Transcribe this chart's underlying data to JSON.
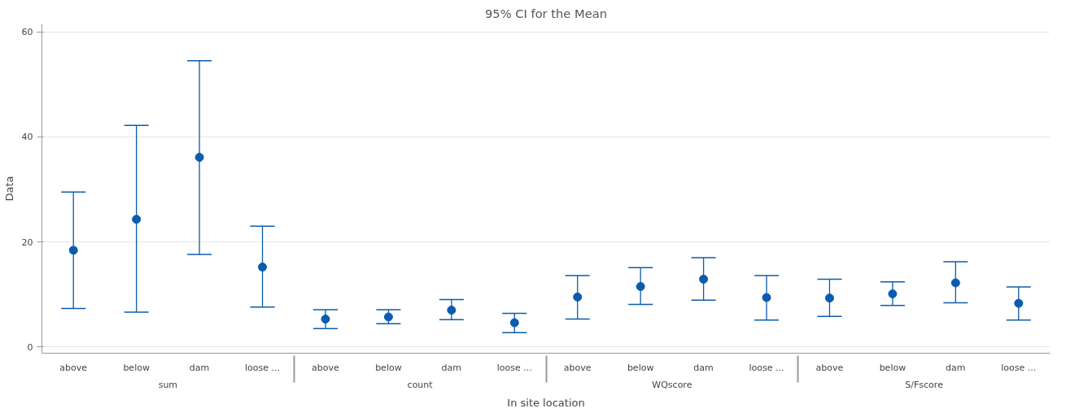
{
  "chart_data": {
    "type": "scatter",
    "title": "95% CI for the Mean",
    "xlabel": "In site location",
    "ylabel": "Data",
    "categories": [
      "above",
      "below",
      "dam",
      "loose ...",
      "above",
      "below",
      "dam",
      "loose ...",
      "above",
      "below",
      "dam",
      "loose ...",
      "above",
      "below",
      "dam",
      "loose ..."
    ],
    "annotations": [
      "sum",
      "count",
      "WQscore",
      "S/Fscore"
    ],
    "series": [
      {
        "color": "#0b5cad",
        "values": [
          18.4,
          24.3,
          36.1,
          15.2,
          5.3,
          5.7,
          7.0,
          4.6,
          9.5,
          11.5,
          12.9,
          9.4,
          9.3,
          10.1,
          12.2,
          8.3
        ],
        "errors": [
          [
            7.3,
            29.5
          ],
          [
            6.6,
            42.2
          ],
          [
            17.6,
            54.5
          ],
          [
            7.6,
            23.0
          ],
          [
            3.5,
            7.1
          ],
          [
            4.4,
            7.1
          ],
          [
            5.2,
            9.0
          ],
          [
            2.7,
            6.4
          ],
          [
            5.3,
            13.6
          ],
          [
            8.1,
            15.1
          ],
          [
            8.9,
            17.0
          ],
          [
            5.1,
            13.6
          ],
          [
            5.8,
            12.9
          ],
          [
            7.9,
            12.4
          ],
          [
            8.4,
            16.2
          ],
          [
            5.1,
            11.4
          ]
        ]
      }
    ],
    "ylim": [
      -1.2,
      61.5
    ],
    "yticks": [
      0,
      20,
      40,
      60
    ],
    "grid": "y",
    "marker": "circle"
  }
}
